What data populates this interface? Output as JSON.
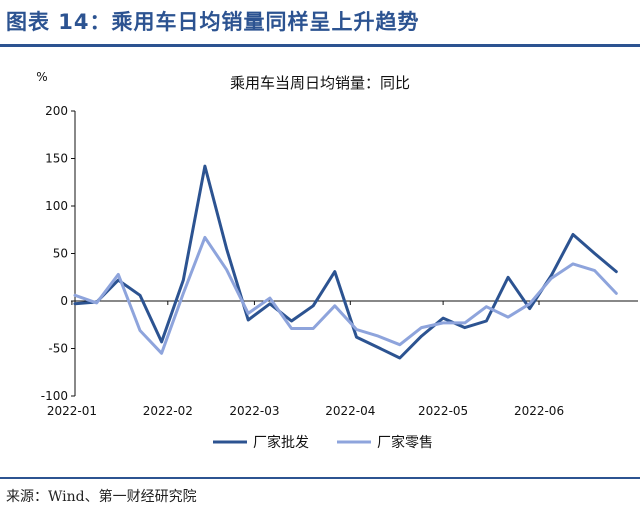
{
  "figure_title": "图表 14：乘用车日均销量同样呈上升趋势",
  "source": "来源：Wind、第一财经研究院",
  "chart_data": {
    "type": "line",
    "title": "乘用车当周日均销量：同比",
    "ylabel": "%",
    "xlabel": "",
    "ylim": [
      -100,
      200
    ],
    "yticks": [
      -100,
      -50,
      0,
      50,
      100,
      150,
      200
    ],
    "xticks": [
      "2022-01",
      "2022-02",
      "2022-03",
      "2022-04",
      "2022-05",
      "2022-06"
    ],
    "grid": false,
    "legend_position": "bottom",
    "x": [
      "2022-01-02",
      "2022-01-09",
      "2022-01-16",
      "2022-01-23",
      "2022-01-30",
      "2022-02-06",
      "2022-02-13",
      "2022-02-20",
      "2022-02-27",
      "2022-03-06",
      "2022-03-13",
      "2022-03-20",
      "2022-03-27",
      "2022-04-03",
      "2022-04-10",
      "2022-04-17",
      "2022-04-24",
      "2022-05-01",
      "2022-05-08",
      "2022-05-15",
      "2022-05-22",
      "2022-05-29",
      "2022-06-05",
      "2022-06-12",
      "2022-06-19",
      "2022-06-26",
      "2022-07-03"
    ],
    "series": [
      {
        "name": "厂家批发",
        "color": "#2c5391",
        "values": [
          -3,
          -1,
          22,
          6,
          -43,
          22,
          142,
          55,
          -20,
          -3,
          -21,
          -5,
          31,
          -38,
          -49,
          -60,
          -37,
          -18,
          -28,
          -21,
          25,
          -8,
          27,
          70,
          50,
          31,
          null
        ]
      },
      {
        "name": "厂家零售",
        "color": "#8ea4dc",
        "values": [
          6,
          -2,
          28,
          -31,
          -55,
          8,
          67,
          33,
          -13,
          3,
          -29,
          -29,
          -5,
          -30,
          -37,
          -46,
          -28,
          -23,
          -23,
          -6,
          -17,
          -3,
          24,
          39,
          32,
          8,
          null
        ]
      }
    ]
  }
}
